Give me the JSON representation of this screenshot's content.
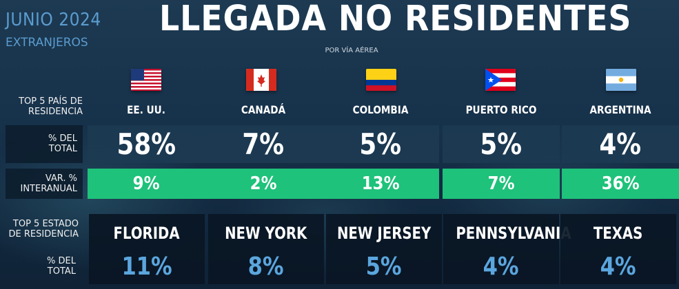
{
  "header": {
    "month": "JUNIO 2024",
    "segment": "EXTRANJEROS",
    "title": "LLEGADA NO RESIDENTES",
    "subtitle": "POR VÍA AÉREA"
  },
  "labels": {
    "top_countries": [
      "TOP 5 PAÍS DE",
      "RESIDENCIA"
    ],
    "share": [
      "% DEL",
      "TOTAL"
    ],
    "yoy": [
      "VAR. %",
      "INTERANUAL"
    ],
    "top_states": [
      "TOP 5 ESTADO",
      "DE RESIDENCIA"
    ],
    "state_share": [
      "% DEL",
      "TOTAL"
    ]
  },
  "countries": [
    {
      "name": "EE. UU.",
      "flag": "us-flag-icon",
      "share": "58%",
      "yoy": "9%"
    },
    {
      "name": "CANADÁ",
      "flag": "canada-flag-icon",
      "share": "7%",
      "yoy": "2%"
    },
    {
      "name": "COLOMBIA",
      "flag": "colombia-flag-icon",
      "share": "5%",
      "yoy": "13%"
    },
    {
      "name": "PUERTO RICO",
      "flag": "puerto-rico-flag-icon",
      "share": "5%",
      "yoy": "7%"
    },
    {
      "name": "ARGENTINA",
      "flag": "argentina-flag-icon",
      "share": "4%",
      "yoy": "36%"
    }
  ],
  "states": [
    {
      "name": "FLORIDA",
      "share": "11%"
    },
    {
      "name": "NEW YORK",
      "share": "8%"
    },
    {
      "name": "NEW JERSEY",
      "share": "5%"
    },
    {
      "name": "PENNSYLVANIA",
      "share": "4%"
    },
    {
      "name": "TEXAS",
      "share": "4%"
    }
  ],
  "colors": {
    "accent_blue": "#5b9ccf",
    "green": "#1ec27a",
    "panel_dark": "#0a1624"
  }
}
